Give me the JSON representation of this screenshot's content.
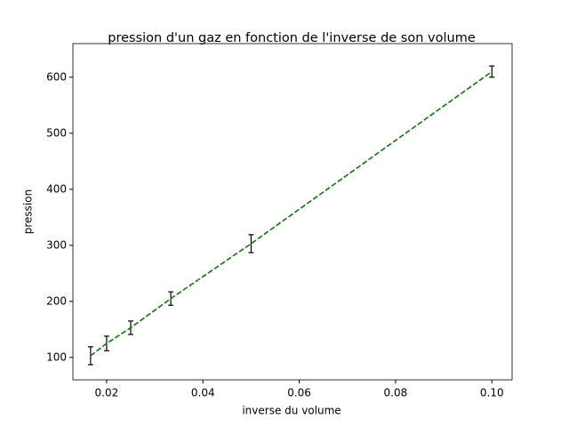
{
  "chart_data": {
    "type": "line",
    "title": "pression d'un gaz en fonction de l'inverse de son volume",
    "xlabel": "inverse du volume",
    "ylabel": "pression",
    "x": [
      0.01667,
      0.02,
      0.025,
      0.03333,
      0.05,
      0.1
    ],
    "series": [
      {
        "color": "#008000",
        "linestyle": "dashed",
        "values": [
          103,
          125,
          153,
          205,
          303,
          610
        ],
        "errors": [
          16,
          13,
          12,
          12,
          16,
          10
        ],
        "error_color": "#000000"
      }
    ],
    "xlim": [
      0.013,
      0.1042
    ],
    "ylim": [
      60,
      660
    ],
    "xticks": [
      0.02,
      0.04,
      0.06,
      0.08,
      {
        "value": 0.1,
        "label": "0.10"
      }
    ],
    "yticks": [
      100,
      200,
      300,
      400,
      500,
      600
    ]
  }
}
